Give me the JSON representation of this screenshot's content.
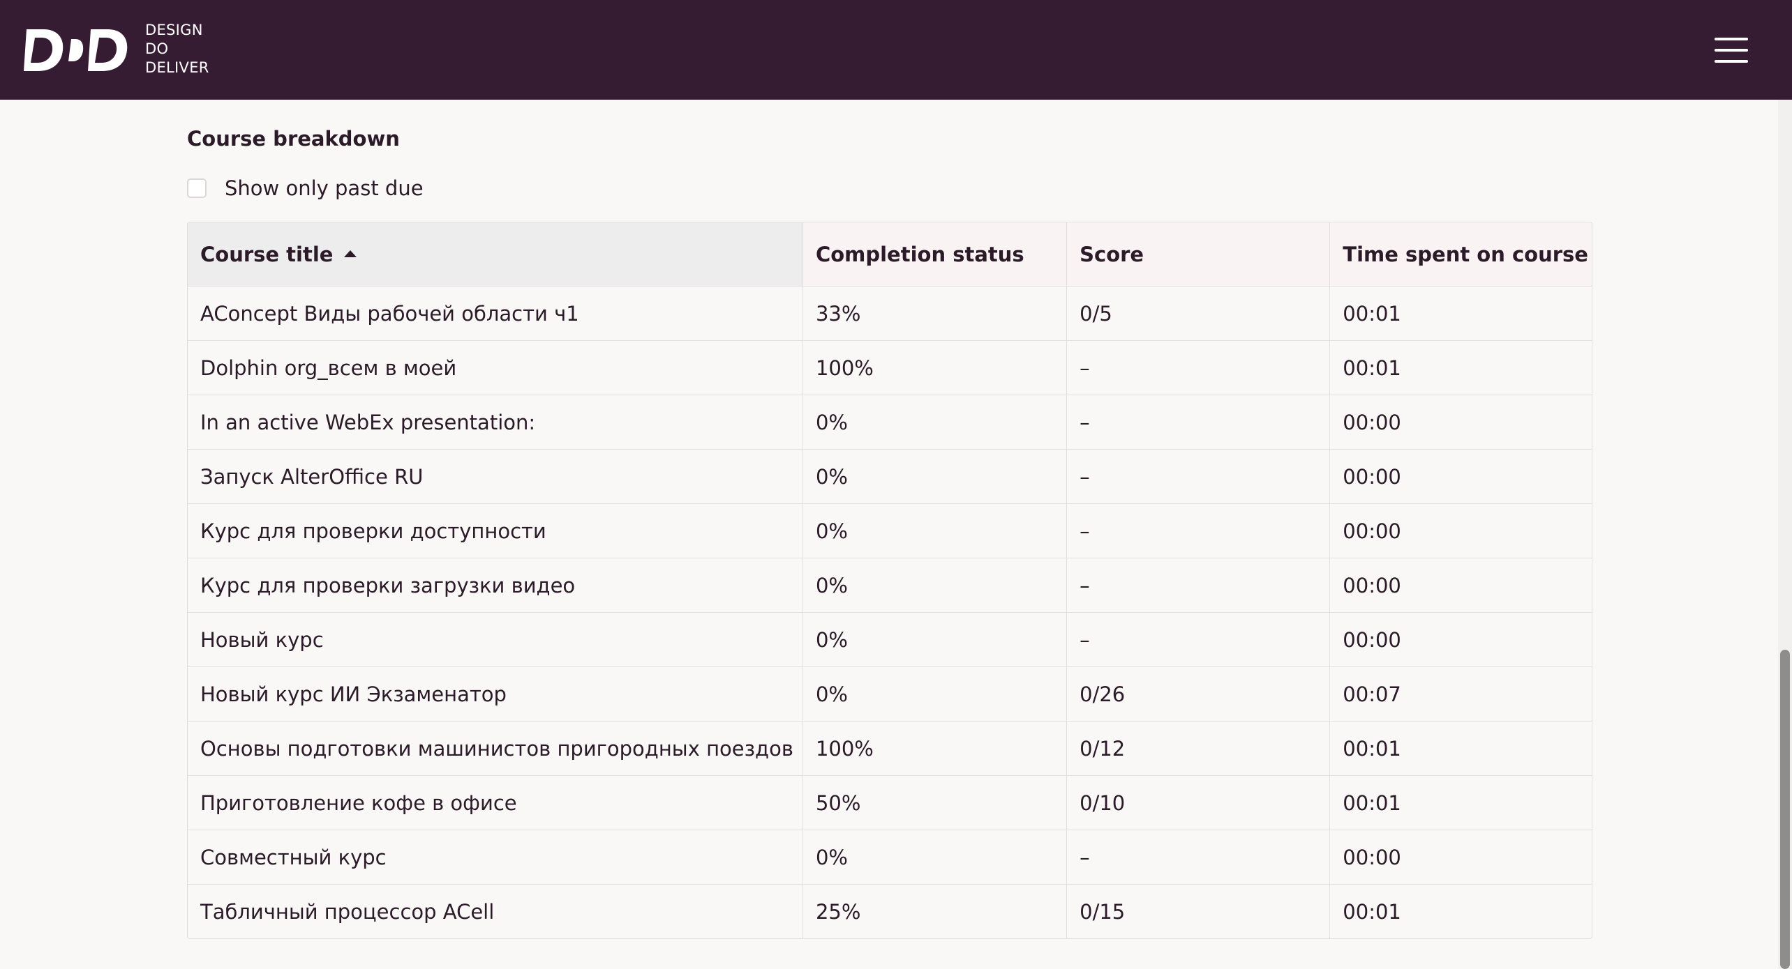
{
  "header": {
    "brand_lines": [
      "DESIGN",
      "DO",
      "DELIVER"
    ],
    "logo_icon": "ddd-logo-icon",
    "menu_icon": "hamburger-menu-icon",
    "background_color": "#361c33"
  },
  "section": {
    "title": "Course breakdown",
    "filter_label": "Show only past due",
    "filter_checked": false
  },
  "table": {
    "columns": [
      "Course title",
      "Completion status",
      "Score",
      "Time spent on course"
    ],
    "sort_column": "Course title",
    "sort_direction": "ascending",
    "rows": [
      {
        "title": "AConcept Виды рабочей области ч1",
        "completion": "33%",
        "score": "0/5",
        "time": "00:01"
      },
      {
        "title": "Dolphin org_всем в моей",
        "completion": "100%",
        "score": "–",
        "time": "00:01"
      },
      {
        "title": "In an active WebEx presentation:",
        "completion": "0%",
        "score": "–",
        "time": "00:00"
      },
      {
        "title": "Запуск AlterOffice RU",
        "completion": "0%",
        "score": "–",
        "time": "00:00"
      },
      {
        "title": "Курс для проверки доступности",
        "completion": "0%",
        "score": "–",
        "time": "00:00"
      },
      {
        "title": "Курс для проверки загрузки видео",
        "completion": "0%",
        "score": "–",
        "time": "00:00"
      },
      {
        "title": "Новый курс",
        "completion": "0%",
        "score": "–",
        "time": "00:00"
      },
      {
        "title": "Новый курс ИИ Экзаменатор",
        "completion": "0%",
        "score": "0/26",
        "time": "00:07"
      },
      {
        "title": "Основы подготовки машинистов пригородных поездов",
        "completion": "100%",
        "score": "0/12",
        "time": "00:01"
      },
      {
        "title": "Приготовление кофе в офисе",
        "completion": "50%",
        "score": "0/10",
        "time": "00:01"
      },
      {
        "title": "Совместный курс",
        "completion": "0%",
        "score": "–",
        "time": "00:00"
      },
      {
        "title": "Табличный процессор ACell",
        "completion": "25%",
        "score": "0/15",
        "time": "00:01"
      }
    ]
  }
}
